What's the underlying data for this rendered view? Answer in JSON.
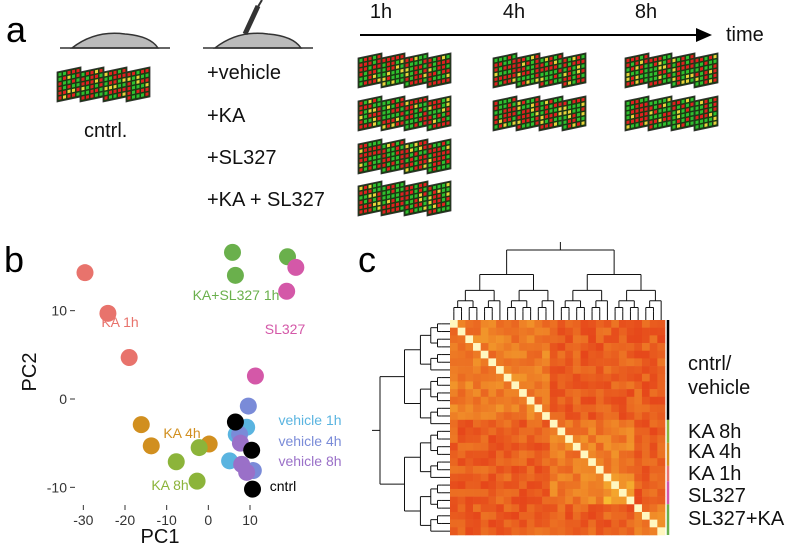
{
  "panel_a": {
    "label": "a",
    "times": [
      "1h",
      "4h",
      "8h"
    ],
    "time_axis": "time",
    "control": "cntrl.",
    "treatments": [
      "+vehicle",
      "+KA",
      "+SL327",
      "+KA + SL327"
    ]
  },
  "chart_data": {
    "type": "scatter",
    "panel_label": "b",
    "x_label": "PC1",
    "y_label": "PC2",
    "xlim": [
      -32,
      22
    ],
    "ylim": [
      -12,
      18
    ],
    "xticks": [
      -30,
      -20,
      -10,
      0,
      10
    ],
    "yticks": [
      -10,
      0,
      10
    ],
    "series": [
      {
        "name": "KA 1h",
        "color": "#e8736c",
        "x": [
          -29.6,
          -24.1,
          -19.0
        ],
        "values": [
          14.3,
          9.7,
          4.7
        ]
      },
      {
        "name": "KA+SL327 1h",
        "color": "#6ab04c",
        "x": [
          5.8,
          6.5,
          19.0
        ],
        "values": [
          16.6,
          14.0,
          16.1
        ]
      },
      {
        "name": "SL327",
        "color": "#d458a8",
        "x": [
          21.0,
          18.8,
          11.3
        ],
        "values": [
          14.9,
          12.2,
          2.6
        ]
      },
      {
        "name": "KA 4h",
        "color": "#d18f1f",
        "x": [
          -16.1,
          -13.7,
          0.2
        ],
        "values": [
          -2.9,
          -5.3,
          -5.1
        ]
      },
      {
        "name": "KA 8h",
        "color": "#8cb43a",
        "x": [
          -7.7,
          -2.7,
          -2.2
        ],
        "values": [
          -7.1,
          -9.3,
          -5.5
        ]
      },
      {
        "name": "vehicle 1h",
        "color": "#5ab4e0",
        "x": [
          6.7,
          5.1,
          9.2
        ],
        "values": [
          -4.0,
          -7.0,
          -3.2
        ]
      },
      {
        "name": "vehicle 4h",
        "color": "#7a8bd8",
        "x": [
          9.6,
          7.5,
          10.8
        ],
        "values": [
          -0.8,
          -4.0,
          -8.1
        ]
      },
      {
        "name": "vehicle 8h",
        "color": "#9a70c8",
        "x": [
          8.0,
          7.7,
          9.2
        ],
        "values": [
          -7.4,
          -5.0,
          -8.3
        ]
      },
      {
        "name": "cntrl",
        "color": "#000000",
        "x": [
          6.5,
          10.4,
          10.6
        ],
        "values": [
          -2.6,
          -5.8,
          -10.2
        ]
      }
    ]
  },
  "panel_c": {
    "label": "c",
    "groups": [
      {
        "lines": [
          "cntrl/",
          "vehicle"
        ],
        "color": "#000000"
      },
      {
        "lines": [
          "KA 8h"
        ],
        "color": "#8cb43a"
      },
      {
        "lines": [
          "KA 4h"
        ],
        "color": "#d18f1f"
      },
      {
        "lines": [
          "KA 1h"
        ],
        "color": "#e8736c"
      },
      {
        "lines": [
          "SL327"
        ],
        "color": "#d458a8"
      },
      {
        "lines": [
          "SL327+KA"
        ],
        "color": "#6ab04c"
      }
    ]
  }
}
